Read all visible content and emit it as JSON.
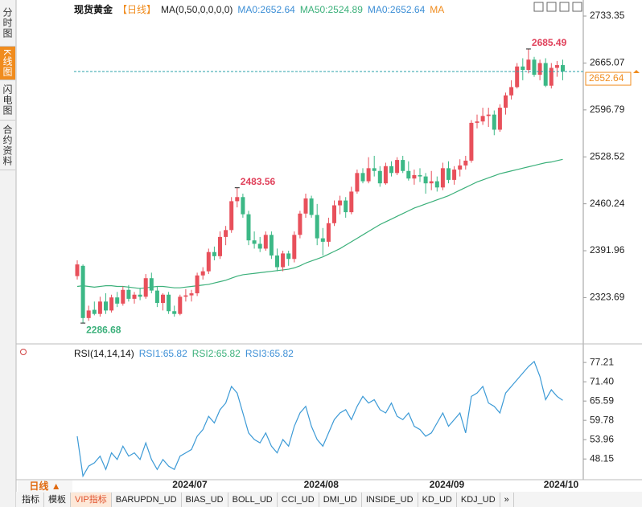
{
  "ui": {
    "side_tabs": [
      "分时图",
      "K线图",
      "闪电图",
      "合约资料"
    ],
    "active_side_tab": 1,
    "period": "日线 ▲",
    "bottom_tabs": [
      "指标",
      "模板",
      "VIP指标",
      "BARUPDN_UD",
      "BIAS_UD",
      "BOLL_UD",
      "CCI_UD",
      "DMI_UD",
      "INSIDE_UD",
      "KD_UD",
      "KDJ_UD",
      "»"
    ],
    "active_bottom_tab": 2
  },
  "chart_data": [
    {
      "type": "candlestick",
      "title": "现货黄金",
      "subtitle": "【日线】",
      "indicator": "MA(0,50,0,0,0,0)",
      "legend_items": [
        "MA0:2652.64",
        "MA50:2524.89",
        "MA0:2652.64",
        "MA"
      ],
      "legend_colors": [
        "#3d8fd6",
        "#3bb07a",
        "#3d8fd6",
        "#f08c1e"
      ],
      "up_color": "#e8505b",
      "down_color": "#3cb886",
      "categories": [
        null,
        null,
        null,
        null,
        null,
        null,
        null,
        null,
        null,
        null,
        null,
        null,
        null,
        null,
        null,
        null,
        null,
        null,
        null,
        null,
        "2024/07",
        null,
        null,
        null,
        null,
        null,
        null,
        null,
        null,
        null,
        null,
        null,
        null,
        null,
        null,
        null,
        null,
        null,
        null,
        null,
        null,
        null,
        null,
        "2024/08",
        null,
        null,
        null,
        null,
        null,
        null,
        null,
        null,
        null,
        null,
        null,
        null,
        null,
        null,
        null,
        null,
        null,
        null,
        null,
        null,
        null,
        "2024/09",
        null,
        null,
        null,
        null,
        null,
        null,
        null,
        null,
        null,
        null,
        null,
        null,
        null,
        null,
        null,
        null,
        null,
        null,
        null,
        "2024/10"
      ],
      "candles": [
        [
          2355,
          2378,
          2350,
          2372
        ],
        [
          2370,
          2372,
          2286.68,
          2294
        ],
        [
          2294,
          2312,
          2290,
          2305
        ],
        [
          2306,
          2318,
          2298,
          2300
        ],
        [
          2300,
          2325,
          2296,
          2318
        ],
        [
          2318,
          2330,
          2300,
          2305
        ],
        [
          2305,
          2328,
          2302,
          2324
        ],
        [
          2324,
          2332,
          2310,
          2315
        ],
        [
          2315,
          2340,
          2312,
          2335
        ],
        [
          2335,
          2342,
          2318,
          2322
        ],
        [
          2322,
          2332,
          2315,
          2328
        ],
        [
          2328,
          2338,
          2320,
          2325
        ],
        [
          2325,
          2358,
          2322,
          2352
        ],
        [
          2352,
          2360,
          2330,
          2334
        ],
        [
          2334,
          2340,
          2310,
          2316
        ],
        [
          2316,
          2330,
          2305,
          2328
        ],
        [
          2328,
          2332,
          2300,
          2304
        ],
        [
          2304,
          2312,
          2296,
          2300
        ],
        [
          2300,
          2328,
          2298,
          2325
        ],
        [
          2325,
          2336,
          2318,
          2327
        ],
        [
          2327,
          2335,
          2318,
          2330
        ],
        [
          2330,
          2360,
          2326,
          2356
        ],
        [
          2356,
          2368,
          2350,
          2362
        ],
        [
          2362,
          2395,
          2358,
          2390
        ],
        [
          2390,
          2398,
          2378,
          2384
        ],
        [
          2384,
          2420,
          2380,
          2412
        ],
        [
          2412,
          2428,
          2400,
          2422
        ],
        [
          2422,
          2470,
          2418,
          2464
        ],
        [
          2464,
          2483.56,
          2455,
          2470
        ],
        [
          2470,
          2475,
          2440,
          2445
        ],
        [
          2445,
          2450,
          2400,
          2407
        ],
        [
          2407,
          2420,
          2395,
          2402
        ],
        [
          2402,
          2412,
          2390,
          2395
        ],
        [
          2395,
          2420,
          2392,
          2415
        ],
        [
          2415,
          2420,
          2380,
          2385
        ],
        [
          2385,
          2395,
          2362,
          2368
        ],
        [
          2368,
          2392,
          2362,
          2388
        ],
        [
          2388,
          2392,
          2370,
          2380
        ],
        [
          2380,
          2420,
          2375,
          2415
        ],
        [
          2415,
          2450,
          2410,
          2446
        ],
        [
          2446,
          2475,
          2440,
          2468
        ],
        [
          2468,
          2472,
          2440,
          2444
        ],
        [
          2444,
          2460,
          2400,
          2410
        ],
        [
          2410,
          2425,
          2385,
          2405
        ],
        [
          2405,
          2440,
          2398,
          2432
        ],
        [
          2432,
          2465,
          2428,
          2458
        ],
        [
          2458,
          2472,
          2445,
          2465
        ],
        [
          2465,
          2470,
          2440,
          2448
        ],
        [
          2448,
          2485,
          2445,
          2478
        ],
        [
          2478,
          2510,
          2475,
          2505
        ],
        [
          2505,
          2512,
          2490,
          2493
        ],
        [
          2493,
          2528,
          2490,
          2512
        ],
        [
          2512,
          2530,
          2500,
          2508
        ],
        [
          2508,
          2515,
          2485,
          2490
        ],
        [
          2490,
          2520,
          2488,
          2515
        ],
        [
          2515,
          2522,
          2500,
          2505
        ],
        [
          2505,
          2528,
          2502,
          2524
        ],
        [
          2524,
          2530,
          2505,
          2508
        ],
        [
          2508,
          2522,
          2494,
          2497
        ],
        [
          2497,
          2510,
          2488,
          2502
        ],
        [
          2502,
          2512,
          2492,
          2500
        ],
        [
          2500,
          2505,
          2475,
          2490
        ],
        [
          2490,
          2508,
          2480,
          2493
        ],
        [
          2493,
          2500,
          2478,
          2484
        ],
        [
          2484,
          2520,
          2480,
          2512
        ],
        [
          2512,
          2522,
          2490,
          2495
        ],
        [
          2495,
          2515,
          2488,
          2510
        ],
        [
          2510,
          2525,
          2500,
          2516
        ],
        [
          2516,
          2530,
          2510,
          2523
        ],
        [
          2523,
          2582,
          2520,
          2578
        ],
        [
          2578,
          2590,
          2570,
          2580
        ],
        [
          2580,
          2600,
          2575,
          2588
        ],
        [
          2588,
          2600,
          2572,
          2590
        ],
        [
          2590,
          2596,
          2560,
          2568
        ],
        [
          2568,
          2605,
          2565,
          2600
        ],
        [
          2600,
          2622,
          2590,
          2618
        ],
        [
          2618,
          2640,
          2612,
          2630
        ],
        [
          2630,
          2665,
          2628,
          2660
        ],
        [
          2660,
          2672,
          2640,
          2655
        ],
        [
          2655,
          2685.49,
          2650,
          2670
        ],
        [
          2670,
          2674,
          2645,
          2648
        ],
        [
          2648,
          2670,
          2640,
          2665
        ],
        [
          2665,
          2672,
          2630,
          2632
        ],
        [
          2632,
          2665,
          2628,
          2658
        ],
        [
          2658,
          2668,
          2645,
          2662
        ],
        [
          2662,
          2670,
          2640,
          2652.64
        ]
      ],
      "ma_line": {
        "color": "#3bb07a",
        "values": [
          2340,
          2341,
          2340,
          2339,
          2340,
          2341,
          2341,
          2340,
          2340,
          2339,
          2338,
          2337,
          2338,
          2339,
          2340,
          2340,
          2339,
          2338,
          2338,
          2339,
          2340,
          2341,
          2342,
          2343,
          2345,
          2347,
          2349,
          2352,
          2355,
          2357,
          2358,
          2359,
          2360,
          2361,
          2362,
          2363,
          2364,
          2365,
          2367,
          2370,
          2374,
          2377,
          2380,
          2383,
          2387,
          2391,
          2395,
          2400,
          2405,
          2410,
          2415,
          2420,
          2425,
          2430,
          2434,
          2438,
          2442,
          2446,
          2450,
          2454,
          2457,
          2460,
          2463,
          2466,
          2469,
          2472,
          2476,
          2480,
          2484,
          2488,
          2492,
          2495,
          2498,
          2501,
          2504,
          2506,
          2508,
          2510,
          2512,
          2514,
          2516,
          2518,
          2520,
          2521,
          2523,
          2524.89
        ]
      },
      "annotations": [
        {
          "value": 2685.49,
          "candle": 79,
          "side": "high",
          "color": "#e0405a"
        },
        {
          "value": 2483.56,
          "candle": 28,
          "side": "high",
          "color": "#e0405a"
        },
        {
          "value": 2286.68,
          "candle": 1,
          "side": "low",
          "color": "#3bb07a"
        }
      ],
      "last_price": 2652.64,
      "last_price_color": "#f08c1e",
      "last_line_color": "#2aa0a8",
      "ylim": [
        2259.9,
        2733.35
      ],
      "yticks": [
        2733.35,
        2665.07,
        2596.79,
        2528.52,
        2460.24,
        2391.96,
        2323.69
      ]
    },
    {
      "type": "line",
      "title": "RSI(14,14,14)",
      "legend_items": [
        "RSI1:65.82",
        "RSI2:65.82",
        "RSI3:65.82"
      ],
      "legend_colors": [
        "#3d8fd6",
        "#3bb07a",
        "#3d8fd6"
      ],
      "series": [
        {
          "color": "#3c9ad6",
          "values": [
            55,
            43,
            46,
            47,
            49,
            45,
            50,
            48,
            52,
            49,
            50,
            48,
            53,
            48,
            45,
            48,
            46,
            45,
            49,
            50,
            51,
            55,
            57,
            61,
            59,
            63,
            65,
            70,
            68,
            62,
            56,
            54,
            53,
            56,
            52,
            50,
            54,
            52,
            58,
            62,
            64,
            58,
            54,
            52,
            56,
            60,
            62,
            63,
            60,
            64,
            67,
            65,
            66,
            63,
            62,
            65,
            61,
            60,
            62,
            58,
            57,
            55,
            56,
            59,
            62,
            58,
            60,
            62,
            56,
            67,
            68,
            70,
            65,
            64,
            62,
            68,
            70,
            72,
            74,
            76,
            77.5,
            73,
            66,
            69,
            67,
            65.82
          ]
        }
      ],
      "ylim": [
        42.4,
        79.9
      ],
      "yticks": [
        77.21,
        {
          "value": 71.4,
          "label": "71.40"
        },
        65.59,
        59.78,
        53.96,
        48.15
      ]
    }
  ]
}
